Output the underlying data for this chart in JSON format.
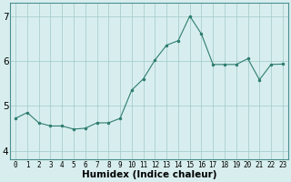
{
  "x": [
    0,
    1,
    2,
    3,
    4,
    5,
    6,
    7,
    8,
    9,
    10,
    11,
    12,
    13,
    14,
    15,
    16,
    17,
    18,
    19,
    20,
    21,
    22,
    23
  ],
  "y": [
    4.72,
    4.85,
    4.62,
    4.55,
    4.55,
    4.48,
    4.5,
    4.62,
    4.62,
    4.72,
    5.35,
    5.6,
    6.02,
    6.35,
    6.45,
    7.0,
    6.6,
    5.92,
    5.92,
    5.92,
    6.05,
    5.58,
    5.92,
    5.93
  ],
  "line_color": "#2e7d70",
  "marker_color": "#2e7d70",
  "bg_color": "#d8eeee",
  "grid_color": "#a0c8c8",
  "axis_label": "Humidex (Indice chaleur)",
  "yticks": [
    4,
    5,
    6,
    7
  ],
  "ylim": [
    3.8,
    7.3
  ],
  "xlim": [
    -0.5,
    23.5
  ],
  "xlabel_fontsize": 7.5,
  "xtick_fontsize": 5.5,
  "ytick_fontsize": 7.5
}
